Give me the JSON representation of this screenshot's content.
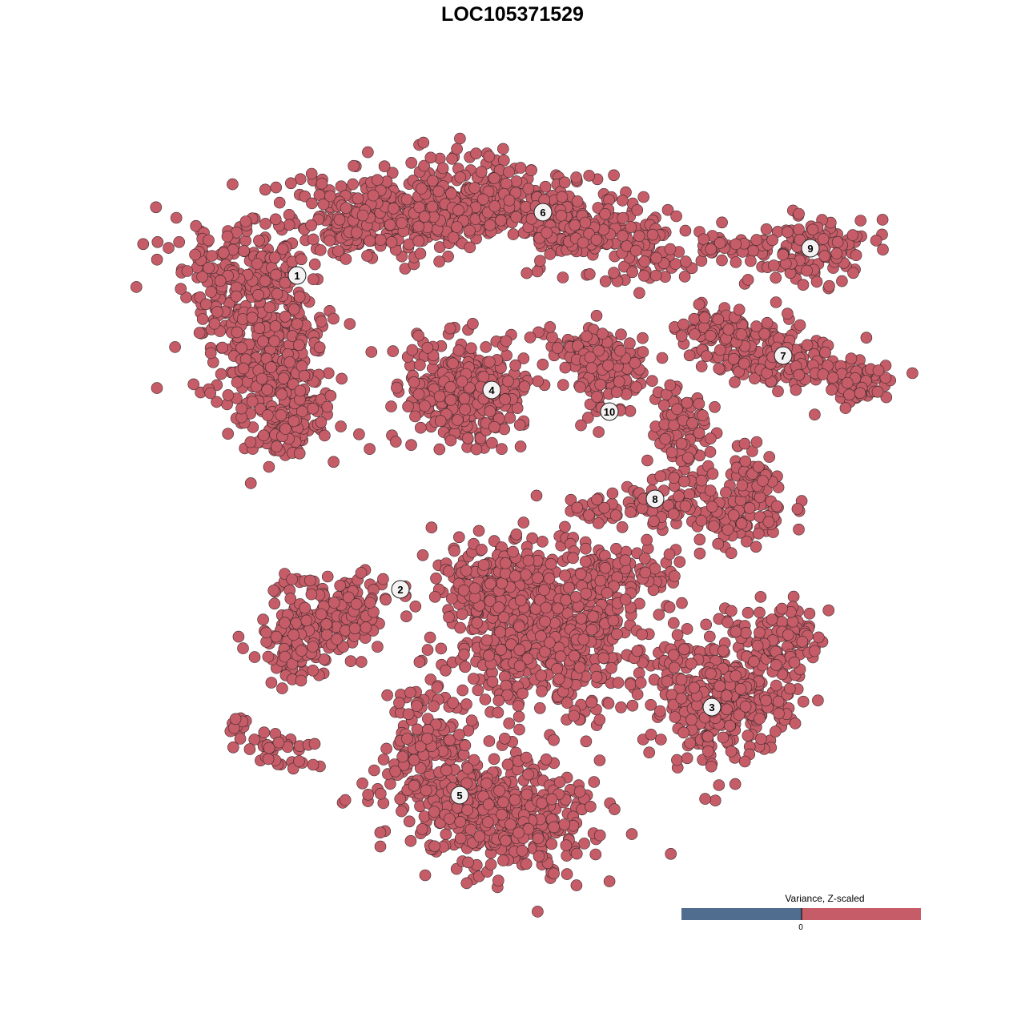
{
  "chart_data": {
    "type": "scatter",
    "title": "LOC105371529",
    "xlabel": "",
    "ylabel": "",
    "grid": false,
    "axes_visible": false,
    "point_color": "#c55c67",
    "point_stroke": "#3a2a2c",
    "cluster_labels": [
      "1",
      "2",
      "3",
      "4",
      "5",
      "6",
      "7",
      "8",
      "9",
      "10"
    ],
    "legend": {
      "title": "Variance, Z-scaled",
      "placement": "bottom-right",
      "tick_label": "0",
      "low_color": "#506d8f",
      "high_color": "#c55c67"
    }
  }
}
